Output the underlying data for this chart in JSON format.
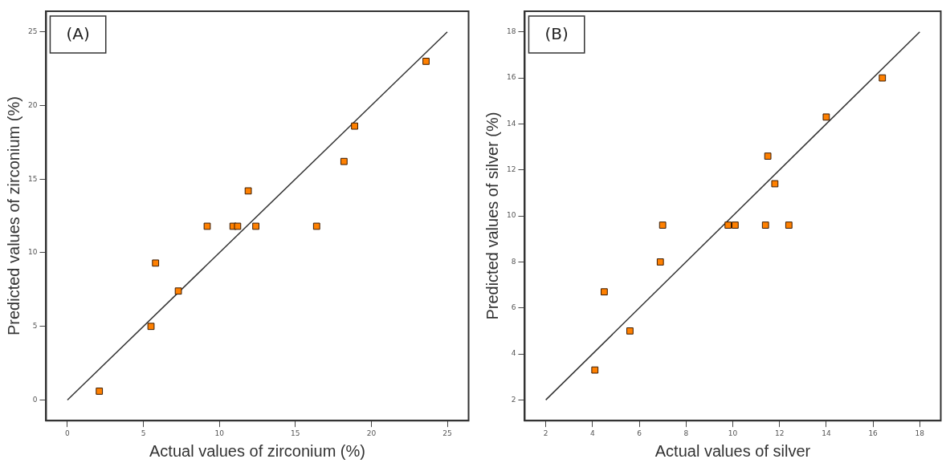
{
  "chart_data": [
    {
      "type": "scatter",
      "xlabel": "Actual values of zirconium (%)",
      "ylabel": "Predicted values of zirconium (%)",
      "annotations": [
        "(A)"
      ],
      "grid": false,
      "xlim": [
        -1.4,
        26.4
      ],
      "ylim": [
        -1.4,
        26.4
      ],
      "xticks": [
        0,
        5,
        10,
        15,
        20,
        25
      ],
      "yticks": [
        0,
        5,
        10,
        15,
        20,
        25
      ],
      "series": [
        {
          "type": "scatter",
          "marker": "square",
          "color": "#ff8000",
          "x": [
            2.1,
            5.5,
            5.8,
            7.3,
            9.2,
            10.9,
            11.2,
            11.9,
            12.4,
            16.4,
            18.2,
            18.9,
            23.6
          ],
          "values": [
            0.6,
            5.0,
            9.3,
            7.4,
            11.8,
            11.8,
            11.8,
            14.2,
            11.8,
            11.8,
            16.2,
            18.6,
            23.0
          ]
        },
        {
          "type": "line",
          "marker": "none",
          "color": "#333333",
          "x": [
            0,
            25
          ],
          "values": [
            0,
            25
          ]
        }
      ]
    },
    {
      "type": "scatter",
      "xlabel": "Actual values of silver",
      "ylabel": "Predicted values of silver (%)",
      "annotations": [
        "(B)"
      ],
      "grid": false,
      "xlim": [
        1.1,
        18.9
      ],
      "ylim": [
        1.1,
        18.9
      ],
      "xticks": [
        2,
        4,
        6,
        8,
        10,
        12,
        14,
        16,
        18
      ],
      "yticks": [
        2,
        4,
        6,
        8,
        10,
        12,
        14,
        16,
        18
      ],
      "series": [
        {
          "type": "scatter",
          "marker": "square",
          "color": "#ff8000",
          "x": [
            4.1,
            4.5,
            5.6,
            6.9,
            7.0,
            9.8,
            10.1,
            11.4,
            12.4,
            11.5,
            11.8,
            14.0,
            16.4
          ],
          "values": [
            3.3,
            6.7,
            5.0,
            8.0,
            9.6,
            9.6,
            9.6,
            9.6,
            9.6,
            12.6,
            11.4,
            14.3,
            16.0
          ]
        },
        {
          "type": "line",
          "marker": "none",
          "color": "#333333",
          "x": [
            2,
            18
          ],
          "values": [
            2,
            18
          ]
        }
      ]
    }
  ]
}
